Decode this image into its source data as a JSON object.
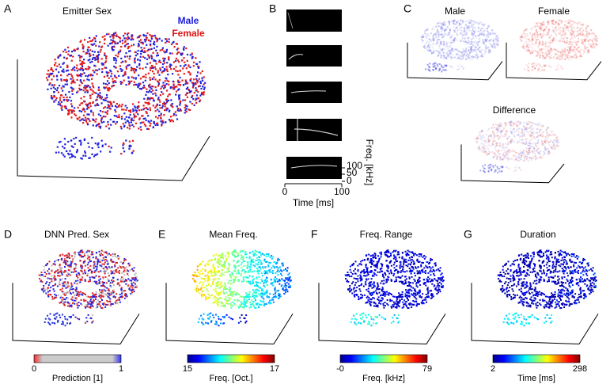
{
  "panels": {
    "A": {
      "label": "A",
      "title": "Emitter Sex",
      "legend": [
        "Male",
        "Female"
      ]
    },
    "B": {
      "label": "B",
      "xticks": [
        "0",
        "100"
      ],
      "xlabel": "Time [ms]",
      "yticks": [
        "100",
        "50",
        "0"
      ],
      "ylabel": "Freq. [kHz]"
    },
    "C": {
      "label": "C",
      "titles": [
        "Male",
        "Female",
        "Difference"
      ]
    },
    "D": {
      "label": "D",
      "title": "DNN Pred. Sex",
      "ticks": [
        "0",
        "1"
      ],
      "colorbar_label": "Prediction [1]"
    },
    "E": {
      "label": "E",
      "title": "Mean Freq.",
      "ticks": [
        "15",
        "17"
      ],
      "colorbar_label": "Freq. [Oct.]"
    },
    "F": {
      "label": "F",
      "title": "Freq. Range",
      "ticks": [
        "-0",
        "79"
      ],
      "colorbar_label": "Freq. [kHz]"
    },
    "G": {
      "label": "G",
      "title": "Duration",
      "ticks": [
        "2",
        "298"
      ],
      "colorbar_label": "Time [ms]"
    }
  }
}
